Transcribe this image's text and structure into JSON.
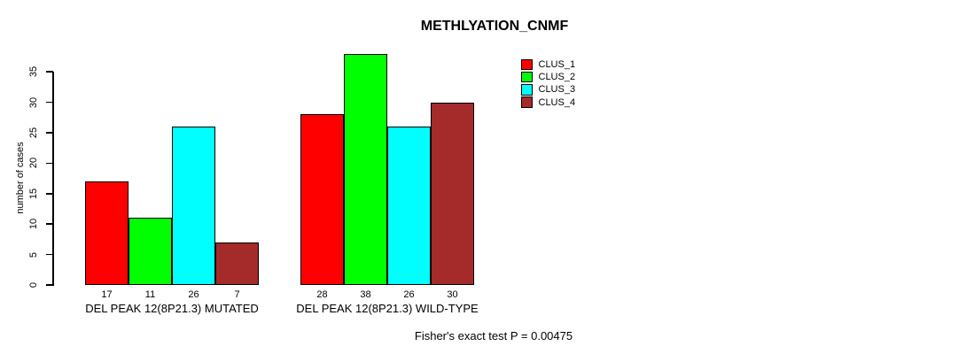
{
  "chart_data": {
    "type": "bar",
    "title": "METHLYATION_CNMF",
    "ylabel": "number of cases",
    "xlabel": "",
    "ylim": [
      0,
      38
    ],
    "yticks": [
      0,
      5,
      10,
      15,
      20,
      25,
      30,
      35
    ],
    "grid": false,
    "categories": [
      "DEL PEAK 12(8P21.3) MUTATED",
      "DEL PEAK 12(8P21.3) WILD-TYPE"
    ],
    "series": [
      {
        "name": "CLUS_1",
        "color": "#FF0000",
        "values": [
          17,
          28
        ]
      },
      {
        "name": "CLUS_2",
        "color": "#00FF00",
        "values": [
          11,
          38
        ]
      },
      {
        "name": "CLUS_3",
        "color": "#00FFFF",
        "values": [
          26,
          26
        ]
      },
      {
        "name": "CLUS_4",
        "color": "#A52A2A",
        "values": [
          7,
          30
        ]
      }
    ],
    "bar_value_labels": [
      [
        "17",
        "11",
        "26",
        "7"
      ],
      [
        "28",
        "38",
        "26",
        "30"
      ]
    ],
    "legend_position": "top-right",
    "legend_entries": [
      "CLUS_1",
      "CLUS_2",
      "CLUS_3",
      "CLUS_4"
    ],
    "annotation": "Fisher's exact test P = 0.00475"
  },
  "colors": {
    "background": "#FFFFFF",
    "axis": "#000000",
    "text": "#000000",
    "bar_border": "#000000"
  }
}
